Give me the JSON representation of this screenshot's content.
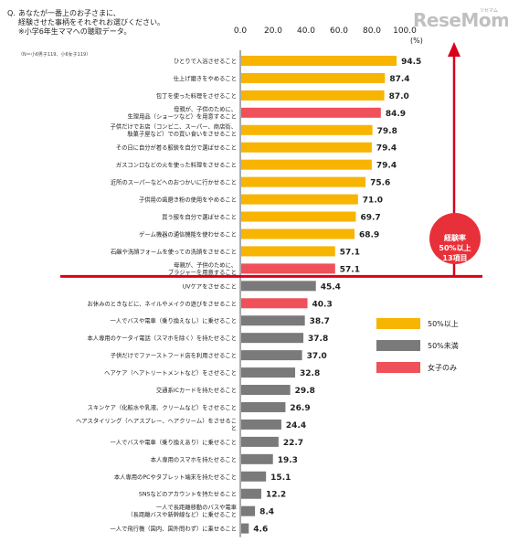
{
  "question": {
    "mark": "Q.",
    "lines": [
      "あなたが一番上のお子さまに、",
      "経験させた事柄をそれぞれお選びください。",
      "※小学6年生ママへの聴取データ。"
    ]
  },
  "note": "（N＝小6男子119、小6女子119）",
  "logo": {
    "brand": "ReseMom",
    "kana": "リセマム"
  },
  "callout": [
    "経験率",
    "50%以上",
    "13項目"
  ],
  "colors": {
    "above50": "#f7b400",
    "below50": "#7a7a7a",
    "girls_only": "#f0505a",
    "divider": "#d9001b"
  },
  "legend": [
    {
      "label": "50%以上",
      "color": "#f7b400"
    },
    {
      "label": "50%未満",
      "color": "#7a7a7a"
    },
    {
      "label": "女子のみ",
      "color": "#f0505a"
    }
  ],
  "chart_data": {
    "type": "bar",
    "orientation": "horizontal",
    "xlim": [
      0,
      100
    ],
    "ticks": [
      "0.0",
      "20.0",
      "40.0",
      "60.0",
      "80.0",
      "100.0"
    ],
    "unit": "(%)",
    "grid": false,
    "categories": [
      [
        "ひとりで入浴させること"
      ],
      [
        "仕上げ磨きをやめること"
      ],
      [
        "包丁を使った料理をさせること"
      ],
      [
        "母親が、子供のために、",
        "生理用品（ショーツなど）を用意すること"
      ],
      [
        "子供だけでお店（コンビニ、スーパー、商店街、",
        "駄菓子屋など）での買い食いをさせること"
      ],
      [
        "その日に自分が着る服装を自分で選ばせること"
      ],
      [
        "ガスコンロなどの火を使った料理をさせること"
      ],
      [
        "近所のスーパーなどへのおつかいに行かせること"
      ],
      [
        "子供用の歯磨き粉の使用をやめること"
      ],
      [
        "買う服を自分で選ばせること"
      ],
      [
        "ゲーム機器の通信機能を使わせること"
      ],
      [
        "石鹸や洗顔フォームを使っての洗顔をさせること"
      ],
      [
        "母親が、子供のために、",
        "ブラジャーを用意すること"
      ],
      [
        "UVケアをさせること"
      ],
      [
        "お休みのときなどに、ネイルやメイクの遊びをさせること"
      ],
      [
        "一人でバスや電車（乗り換えなし）に乗せること"
      ],
      [
        "本人専用のケータイ電話（スマホを除く）を持たせること"
      ],
      [
        "子供だけでファーストフード店を利用させること"
      ],
      [
        "ヘアケア（ヘアトリートメントなど）をさせること"
      ],
      [
        "交通系ICカードを持たせること"
      ],
      [
        "スキンケア（化粧水や乳液、クリームなど）をさせること"
      ],
      [
        "ヘアスタイリング（ヘアスプレー、ヘアクリーム）をさせるこ",
        "と"
      ],
      [
        "一人でバスや電車（乗り換えあり）に乗せること"
      ],
      [
        "本人専用のスマホを持たせること"
      ],
      [
        "本人専用のPCやタブレット端末を持たせること"
      ],
      [
        "SNSなどのアカウントを持たせること"
      ],
      [
        "一人で長距離移動のバスや電車",
        "（長距離バスや新幹線など）に乗せること"
      ],
      [
        "一人で飛行機（国内、国外問わず）に乗せること"
      ]
    ],
    "values": [
      94.5,
      87.4,
      87.0,
      84.9,
      79.8,
      79.4,
      79.4,
      75.6,
      71.0,
      69.7,
      68.9,
      57.1,
      57.1,
      45.4,
      40.3,
      38.7,
      37.8,
      37.0,
      32.8,
      29.8,
      26.9,
      24.4,
      22.7,
      19.3,
      15.1,
      12.2,
      8.4,
      4.6
    ],
    "value_labels": [
      "94.5",
      "87.4",
      "87.0",
      "84.9",
      "79.8",
      "79.4",
      "79.4",
      "75.6",
      "71.0",
      "69.7",
      "68.9",
      "57.1",
      "57.1",
      "45.4",
      "40.3",
      "38.7",
      "37.8",
      "37.0",
      "32.8",
      "29.8",
      "26.9",
      "24.4",
      "22.7",
      "19.3",
      "15.1",
      "12.2",
      "8.4",
      "4.6"
    ],
    "groups": [
      "above50",
      "above50",
      "above50",
      "girls_only",
      "above50",
      "above50",
      "above50",
      "above50",
      "above50",
      "above50",
      "above50",
      "above50",
      "girls_only",
      "below50",
      "girls_only",
      "below50",
      "below50",
      "below50",
      "below50",
      "below50",
      "below50",
      "below50",
      "below50",
      "below50",
      "below50",
      "below50",
      "below50",
      "below50"
    ]
  }
}
